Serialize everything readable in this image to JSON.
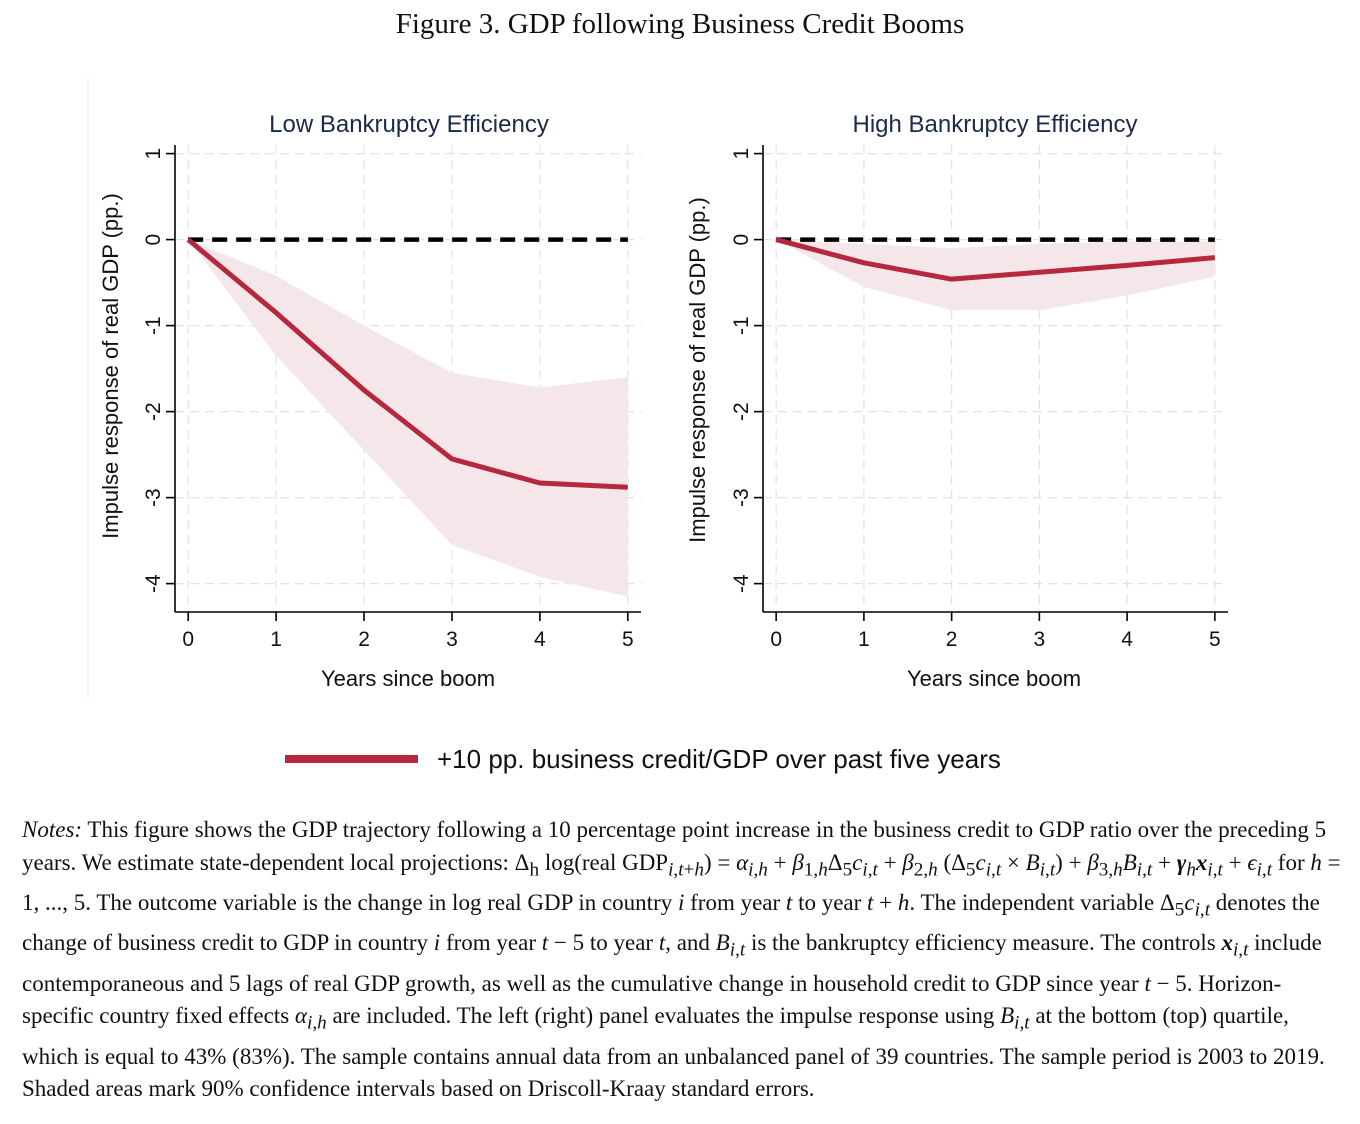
{
  "figure": {
    "title": "Figure 3. GDP following Business Credit Booms"
  },
  "chart_data": [
    {
      "type": "line",
      "title": "Low Bankruptcy Efficiency",
      "xlabel": "Years since boom",
      "ylabel": "Impulse response of real GDP (pp.)",
      "x": [
        0,
        1,
        2,
        3,
        4,
        5
      ],
      "xlim": [
        -0.15,
        5.15
      ],
      "ylim": [
        -4.33,
        1.1
      ],
      "xticks": [
        0,
        1,
        2,
        3,
        4,
        5
      ],
      "yticks": [
        1,
        0,
        -1,
        -2,
        -3,
        -4
      ],
      "grid": true,
      "series": [
        {
          "name": "+10 pp. business credit/GDP over past five years",
          "values": [
            0,
            -0.85,
            -1.75,
            -2.55,
            -2.83,
            -2.88
          ],
          "lower": [
            0,
            -1.35,
            -2.45,
            -3.55,
            -3.92,
            -4.15
          ],
          "upper": [
            0,
            -0.42,
            -1.0,
            -1.55,
            -1.72,
            -1.6
          ],
          "color": "#b5283d",
          "band_color": "#f5e6ea"
        }
      ],
      "reference_line": {
        "y": 0,
        "style": "dashed",
        "color": "#000000"
      }
    },
    {
      "type": "line",
      "title": "High Bankruptcy Efficiency",
      "xlabel": "Years since boom",
      "ylabel": "Impulse response of real GDP (pp.)",
      "x": [
        0,
        1,
        2,
        3,
        4,
        5
      ],
      "xlim": [
        -0.15,
        5.15
      ],
      "ylim": [
        -4.33,
        1.1
      ],
      "xticks": [
        0,
        1,
        2,
        3,
        4,
        5
      ],
      "yticks": [
        1,
        0,
        -1,
        -2,
        -3,
        -4
      ],
      "grid": true,
      "series": [
        {
          "name": "+10 pp. business credit/GDP over past five years",
          "values": [
            0,
            -0.27,
            -0.46,
            -0.38,
            -0.3,
            -0.21
          ],
          "lower": [
            0,
            -0.55,
            -0.82,
            -0.82,
            -0.65,
            -0.43
          ],
          "upper": [
            0,
            -0.05,
            -0.1,
            -0.05,
            -0.02,
            -0.02
          ],
          "color": "#b5283d",
          "band_color": "#f5e6ea"
        }
      ],
      "reference_line": {
        "y": 0,
        "style": "dashed",
        "color": "#000000"
      }
    }
  ],
  "legend": {
    "label": "+10 pp. business credit/GDP over past five years",
    "color": "#b5283d",
    "placement": "bottom"
  }
}
